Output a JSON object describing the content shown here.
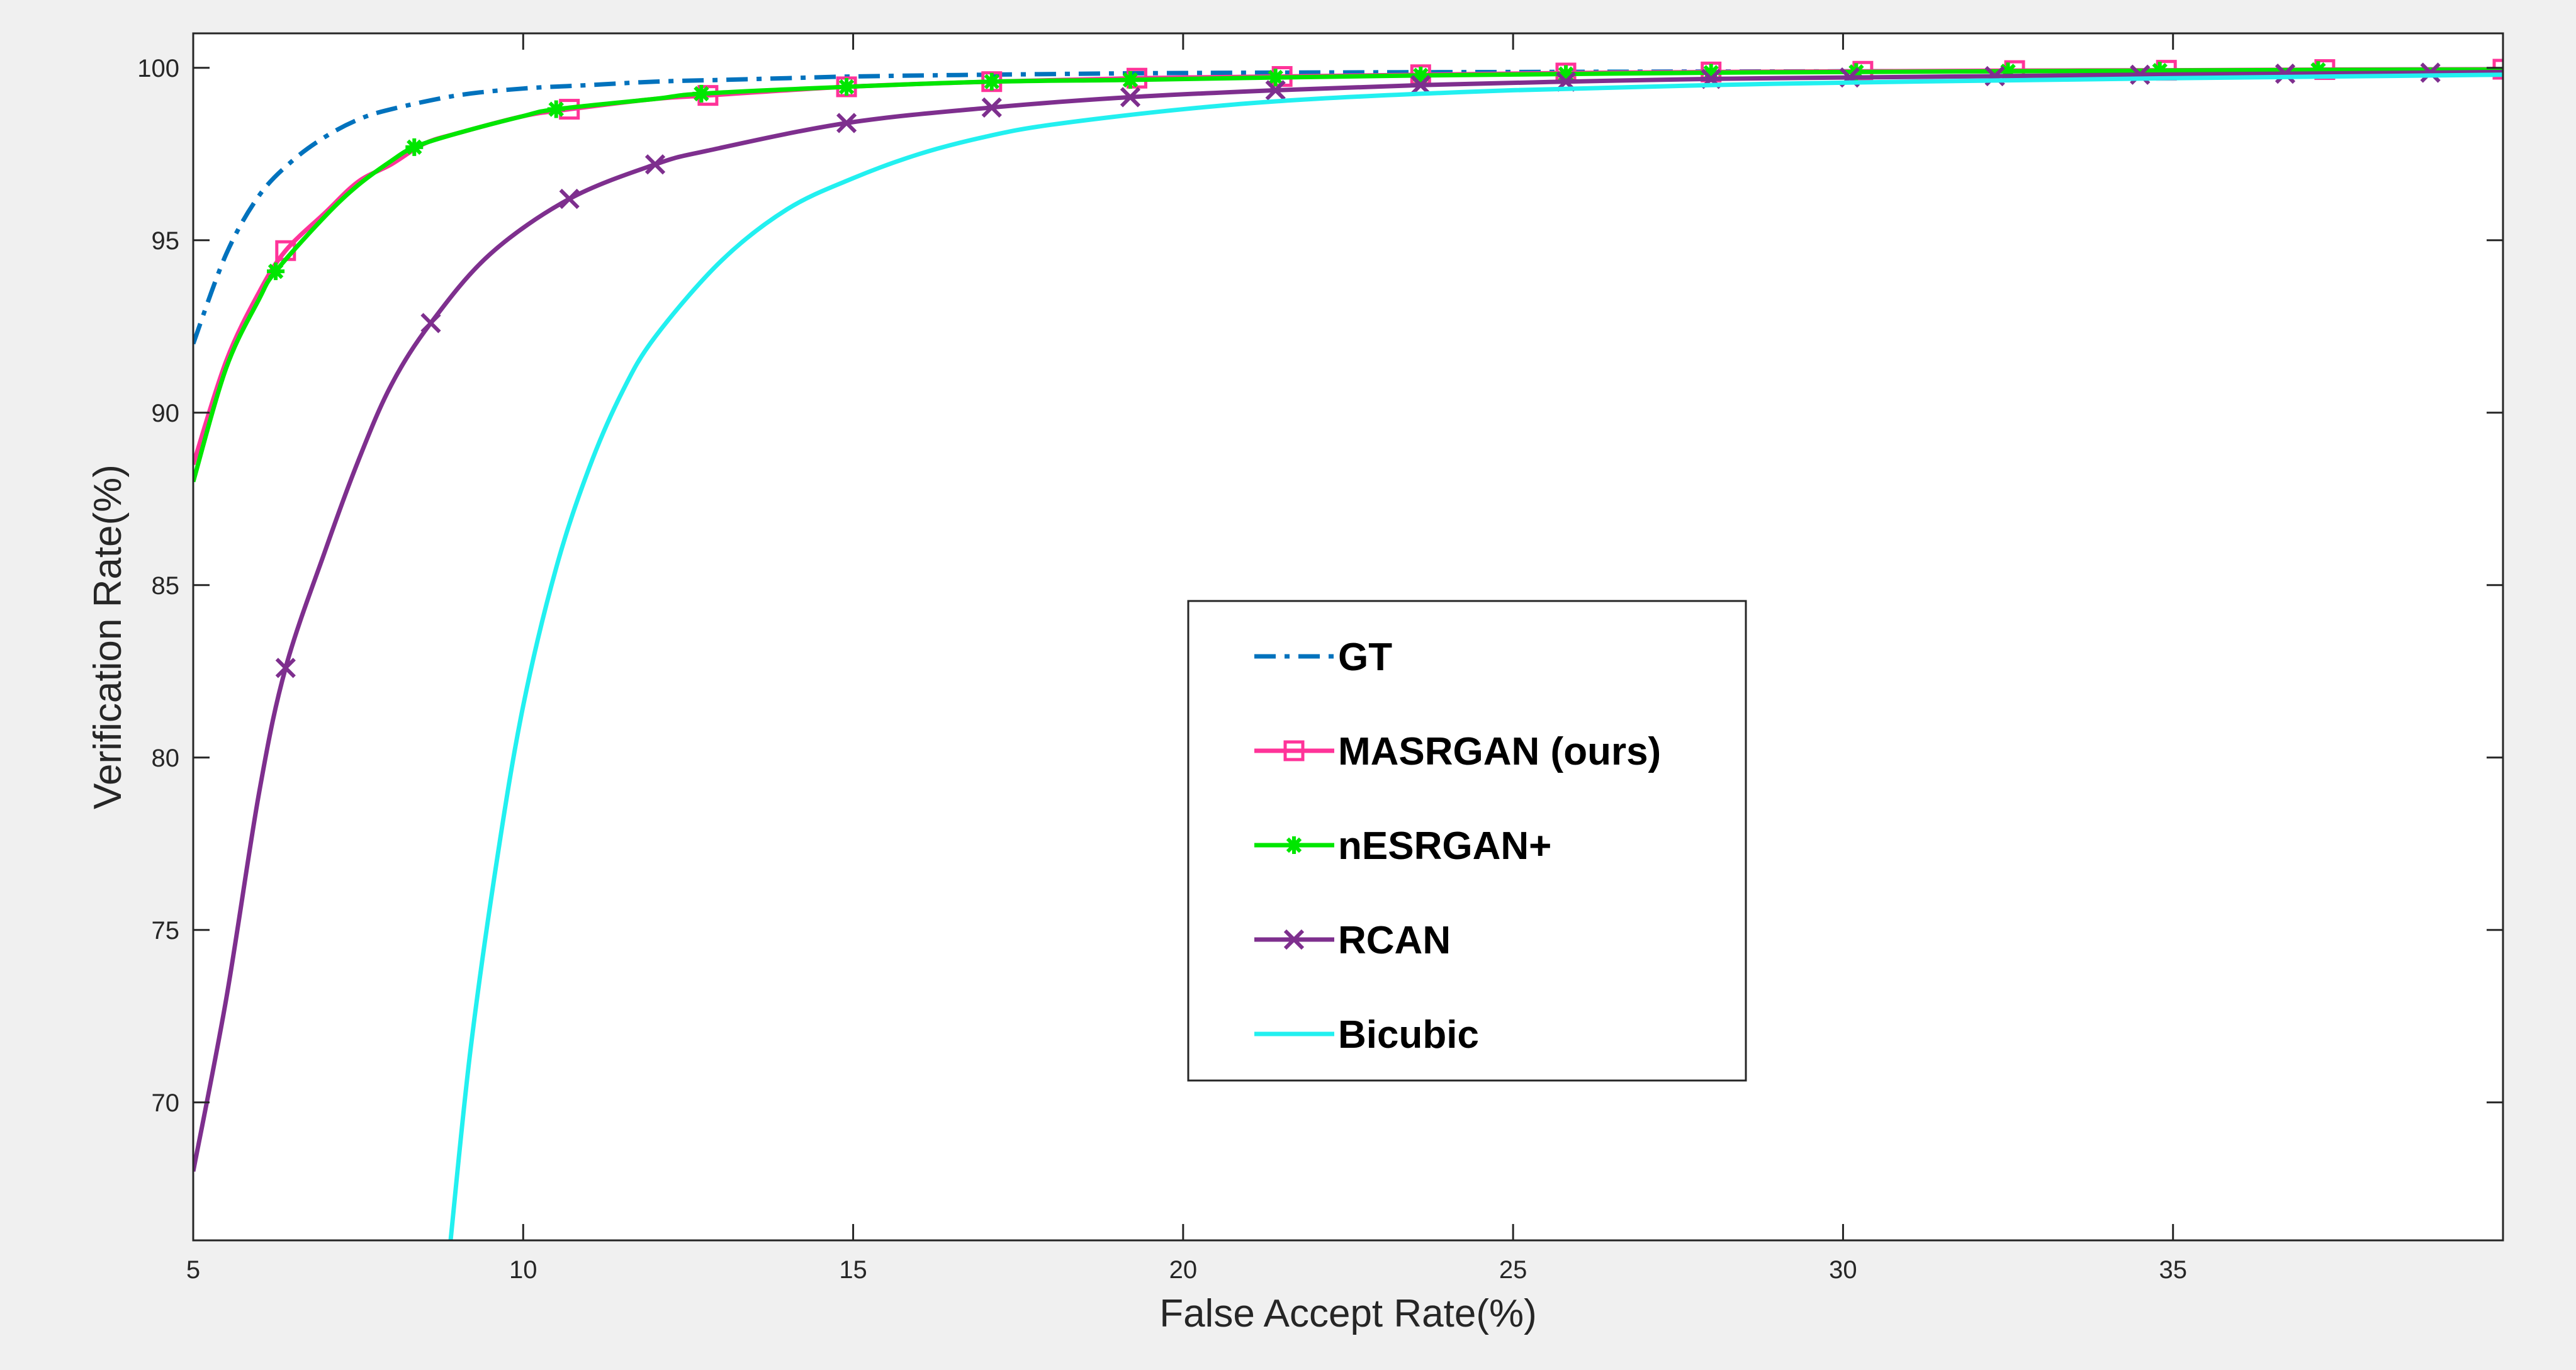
{
  "chart_data": {
    "type": "line",
    "title": "",
    "xlabel": "False Accept Rate(%)",
    "ylabel": "Verification Rate(%)",
    "xlim": [
      5,
      40
    ],
    "ylim": [
      66,
      101
    ],
    "xticks": [
      5,
      10,
      15,
      20,
      25,
      30,
      35
    ],
    "yticks": [
      70,
      75,
      80,
      85,
      90,
      95,
      100
    ],
    "grid": false,
    "legend": "center-right",
    "colors": {
      "figure_bg": "#f0f0f0",
      "axes_bg": "#ffffff",
      "axes_edge": "#262626"
    },
    "series": [
      {
        "name": "GT",
        "color": "#0072bd",
        "style": "dashdot",
        "marker": "none",
        "x": [
          5,
          5.5,
          6,
          6.5,
          7,
          7.5,
          8,
          9,
          10,
          11,
          12,
          13,
          14,
          15,
          17,
          20,
          25,
          30,
          35,
          40
        ],
        "y": [
          92.0,
          94.6,
          96.3,
          97.3,
          98.0,
          98.5,
          98.8,
          99.2,
          99.4,
          99.5,
          99.6,
          99.65,
          99.7,
          99.75,
          99.8,
          99.85,
          99.88,
          99.9,
          99.92,
          99.95
        ]
      },
      {
        "name": "MASRGAN (ours)",
        "color": "#ff3399",
        "style": "solid",
        "marker": "square",
        "x": [
          5,
          5.5,
          6,
          6.4,
          7,
          7.5,
          8,
          8.5,
          9,
          10,
          10.7,
          12,
          12.8,
          14.9,
          17.1,
          19.3,
          21.5,
          23.6,
          25.8,
          28,
          30.3,
          32.6,
          34.9,
          37.3,
          40
        ],
        "y": [
          88.5,
          91.5,
          93.5,
          94.7,
          95.8,
          96.7,
          97.2,
          97.8,
          98.1,
          98.6,
          98.8,
          99.1,
          99.2,
          99.45,
          99.6,
          99.7,
          99.75,
          99.8,
          99.85,
          99.88,
          99.9,
          99.92,
          99.93,
          99.95,
          99.96
        ]
      },
      {
        "name": "nESRGAN+",
        "color": "#00e600",
        "style": "solid",
        "marker": "star",
        "x": [
          5,
          5.5,
          6,
          6.25,
          7,
          7.5,
          8,
          8.35,
          9,
          10,
          10.5,
          12,
          12.7,
          14.9,
          17.1,
          19.2,
          21.4,
          23.6,
          25.8,
          28,
          30.2,
          32.5,
          34.8,
          37.2,
          40
        ],
        "y": [
          88.0,
          91.3,
          93.3,
          94.1,
          95.7,
          96.6,
          97.3,
          97.7,
          98.1,
          98.6,
          98.8,
          99.1,
          99.25,
          99.45,
          99.6,
          99.65,
          99.72,
          99.78,
          99.82,
          99.86,
          99.88,
          99.9,
          99.92,
          99.94,
          99.95
        ]
      },
      {
        "name": "RCAN",
        "color": "#7e2f8e",
        "style": "solid",
        "marker": "x",
        "x": [
          5,
          5.5,
          6,
          6.4,
          7,
          7.5,
          8,
          8.6,
          9.5,
          10.7,
          12,
          12.8,
          14.9,
          17.1,
          19.2,
          21.4,
          23.6,
          25.8,
          28,
          30.1,
          32.3,
          34.5,
          36.7,
          38.9,
          40
        ],
        "y": [
          68.0,
          73.0,
          79.0,
          82.6,
          86.0,
          88.6,
          90.8,
          92.6,
          94.6,
          96.2,
          97.2,
          97.6,
          98.4,
          98.85,
          99.15,
          99.35,
          99.5,
          99.6,
          99.68,
          99.72,
          99.76,
          99.8,
          99.83,
          99.86,
          99.88
        ]
      },
      {
        "name": "Bicubic",
        "color": "#22f0f0",
        "style": "solid",
        "marker": "none",
        "x": [
          8.9,
          9.2,
          9.6,
          10,
          10.5,
          11,
          11.5,
          12,
          13,
          14,
          15,
          16,
          17,
          18,
          20,
          22,
          25,
          28,
          31,
          35,
          40
        ],
        "y": [
          66.0,
          71.5,
          77.0,
          81.5,
          85.5,
          88.4,
          90.6,
          92.2,
          94.4,
          95.9,
          96.8,
          97.5,
          98.0,
          98.35,
          98.8,
          99.1,
          99.35,
          99.5,
          99.6,
          99.7,
          99.8
        ]
      }
    ]
  }
}
